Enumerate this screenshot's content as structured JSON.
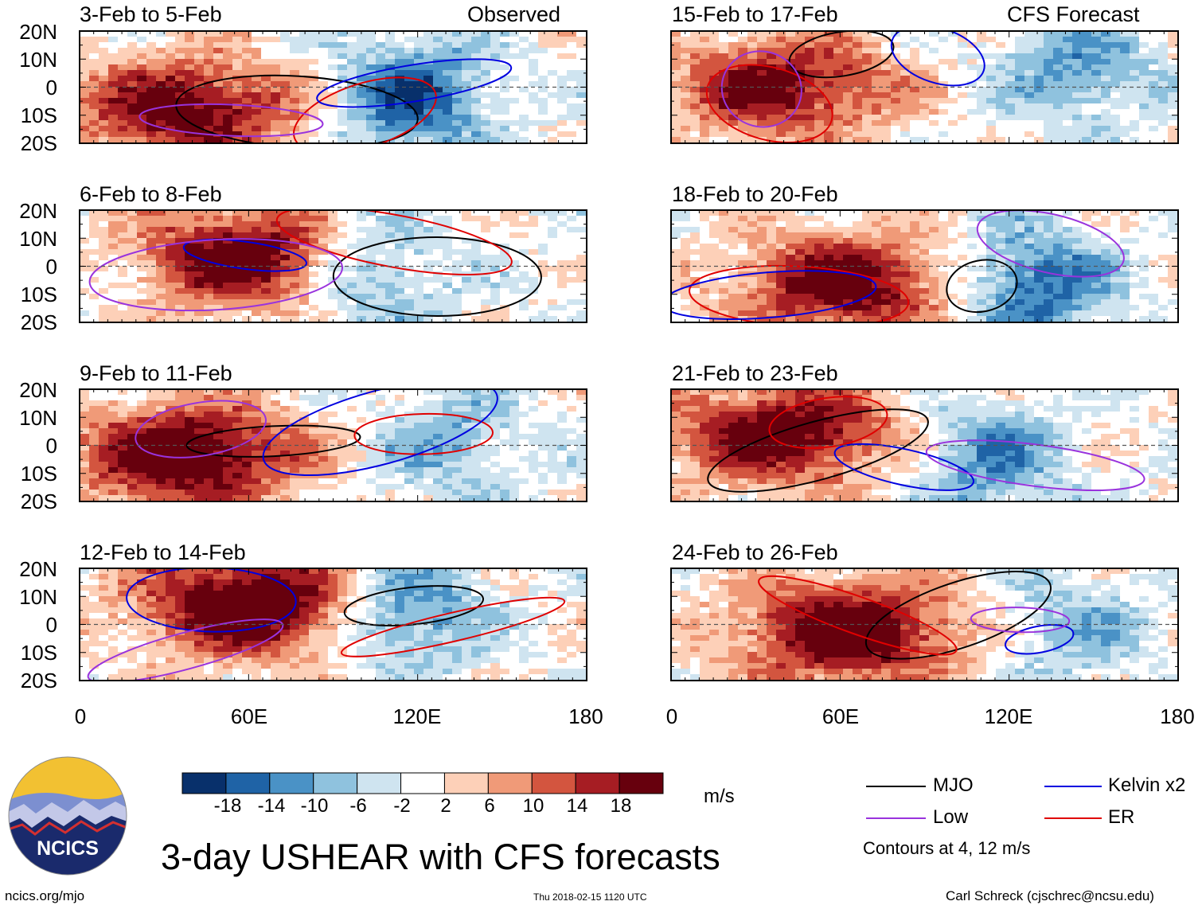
{
  "panels": [
    {
      "title": "3-Feb to 5-Feb",
      "tag": "Observed",
      "seed": 3
    },
    {
      "title": "15-Feb to 17-Feb",
      "tag": "CFS Forecast",
      "seed": 15
    },
    {
      "title": "6-Feb to 8-Feb",
      "tag": "",
      "seed": 6
    },
    {
      "title": "18-Feb to 20-Feb",
      "tag": "",
      "seed": 18
    },
    {
      "title": "9-Feb to 11-Feb",
      "tag": "",
      "seed": 9
    },
    {
      "title": "21-Feb to 23-Feb",
      "tag": "",
      "seed": 21
    },
    {
      "title": "12-Feb to 14-Feb",
      "tag": "",
      "seed": 12
    },
    {
      "title": "24-Feb to 26-Feb",
      "tag": "",
      "seed": 24
    }
  ],
  "y_axis_labels": [
    "20N",
    "10N",
    "0",
    "10S",
    "20S"
  ],
  "x_axis_labels": [
    "0",
    "60E",
    "120E",
    "180"
  ],
  "colorbar": {
    "ticks": [
      "-18",
      "-14",
      "-10",
      "-6",
      "-2",
      "2",
      "6",
      "10",
      "14",
      "18"
    ],
    "colors": [
      "#08306b",
      "#1f63a6",
      "#4a92c6",
      "#8fc2de",
      "#cfe4f0",
      "#ffffff",
      "#fdd0b8",
      "#f09a78",
      "#d3553f",
      "#a61d23",
      "#67000d"
    ],
    "unit": "m/s"
  },
  "legend": {
    "items": [
      {
        "label": "MJO",
        "color": "#000000"
      },
      {
        "label": "Kelvin x2",
        "color": "#0000e0"
      },
      {
        "label": "Low",
        "color": "#9933dd"
      },
      {
        "label": "ER",
        "color": "#e00000"
      }
    ],
    "note": "Contours at 4, 12 m/s"
  },
  "logo": {
    "text": "NCICS"
  },
  "main_title": "3-day USHEAR with CFS forecasts",
  "footer": {
    "left": "ncics.org/mjo",
    "center": "Thu 2018-02-15 1120 UTC",
    "right": "Carl Schreck (cjschrec@ncsu.edu)"
  }
}
